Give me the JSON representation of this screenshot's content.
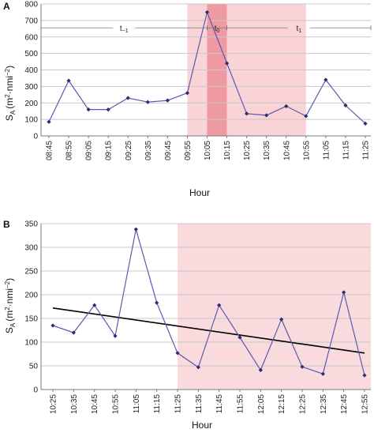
{
  "chart_data": [
    {
      "panel": "A",
      "type": "line",
      "xlabel": "Hour",
      "ylabel": "S_A (m²·nmi⁻²)",
      "ylim": [
        0,
        800
      ],
      "yticks": [
        0,
        100,
        200,
        300,
        400,
        500,
        600,
        700,
        800
      ],
      "grid": true,
      "categories": [
        "08:45",
        "08:55",
        "09:05",
        "09:15",
        "09:25",
        "09:35",
        "09:45",
        "09:55",
        "10:05",
        "10:15",
        "10:25",
        "10:35",
        "10:45",
        "10:55",
        "11:05",
        "11:15",
        "11:25"
      ],
      "series": [
        {
          "values": [
            85,
            335,
            160,
            160,
            230,
            205,
            215,
            260,
            750,
            440,
            135,
            125,
            180,
            120,
            340,
            185,
            75
          ]
        }
      ],
      "shaded_periods": [
        {
          "from": "09:55",
          "to": "10:05",
          "color": "#f9d3d6"
        },
        {
          "from": "10:05",
          "to": "10:15",
          "color": "#ef9aa2"
        },
        {
          "from": "10:15",
          "to": "10:55",
          "color": "#f9d3d6"
        }
      ],
      "period_labels": [
        {
          "label": "t−1",
          "from": "08:45",
          "to": "10:05"
        },
        {
          "label": "t0",
          "from": "10:05",
          "to": "10:15"
        },
        {
          "label": "t1",
          "from": "10:15",
          "to": "11:25"
        }
      ],
      "period_label_y": 655
    },
    {
      "panel": "B",
      "type": "line",
      "xlabel": "Hour",
      "ylabel": "S_A (m²·nmi⁻²)",
      "ylim": [
        0,
        350
      ],
      "yticks": [
        0,
        50,
        100,
        150,
        200,
        250,
        300,
        350
      ],
      "grid": true,
      "categories": [
        "10:25",
        "10:35",
        "10:45",
        "10:55",
        "11:05",
        "11:15",
        "11:25",
        "11:35",
        "11:45",
        "11:55",
        "12:05",
        "12:15",
        "12:25",
        "12:35",
        "12:45",
        "12:55"
      ],
      "series": [
        {
          "values": [
            135,
            120,
            178,
            113,
            338,
            183,
            77,
            47,
            178,
            110,
            41,
            148,
            48,
            33,
            205,
            30
          ]
        }
      ],
      "shaded_periods": [
        {
          "from": "11:25",
          "to": "12:55",
          "color": "#f9dadd"
        }
      ],
      "trendline": {
        "start": 172,
        "end": 77
      }
    }
  ],
  "panels": {
    "a": {
      "letter": "A",
      "ylabel_main": "S",
      "ylabel_sub": "A",
      "ylabel_units": "(m",
      "ylabel_sup1": "2",
      "ylabel_dot": "·nmi",
      "ylabel_sup2": "−2",
      "ylabel_close": ")",
      "xlabel": "Hour"
    },
    "b": {
      "letter": "B",
      "ylabel_main": "S",
      "ylabel_sub": "A",
      "ylabel_units": "(m",
      "ylabel_sup1": "2",
      "ylabel_dot": "·nmi",
      "ylabel_sup2": "−2",
      "ylabel_close": ")",
      "xlabel": "Hour"
    }
  },
  "period_text": {
    "tm1_main": "t",
    "tm1_sub": "−1",
    "t0_main": "t",
    "t0_sub": "0",
    "t1_main": "t",
    "t1_sub": "1"
  },
  "colors": {
    "series": "#5a5ab0",
    "marker": "#2c2c6e",
    "shade_light": "#f9d3d6",
    "shade_dark": "#ef9aa2",
    "trend": "#000000"
  }
}
